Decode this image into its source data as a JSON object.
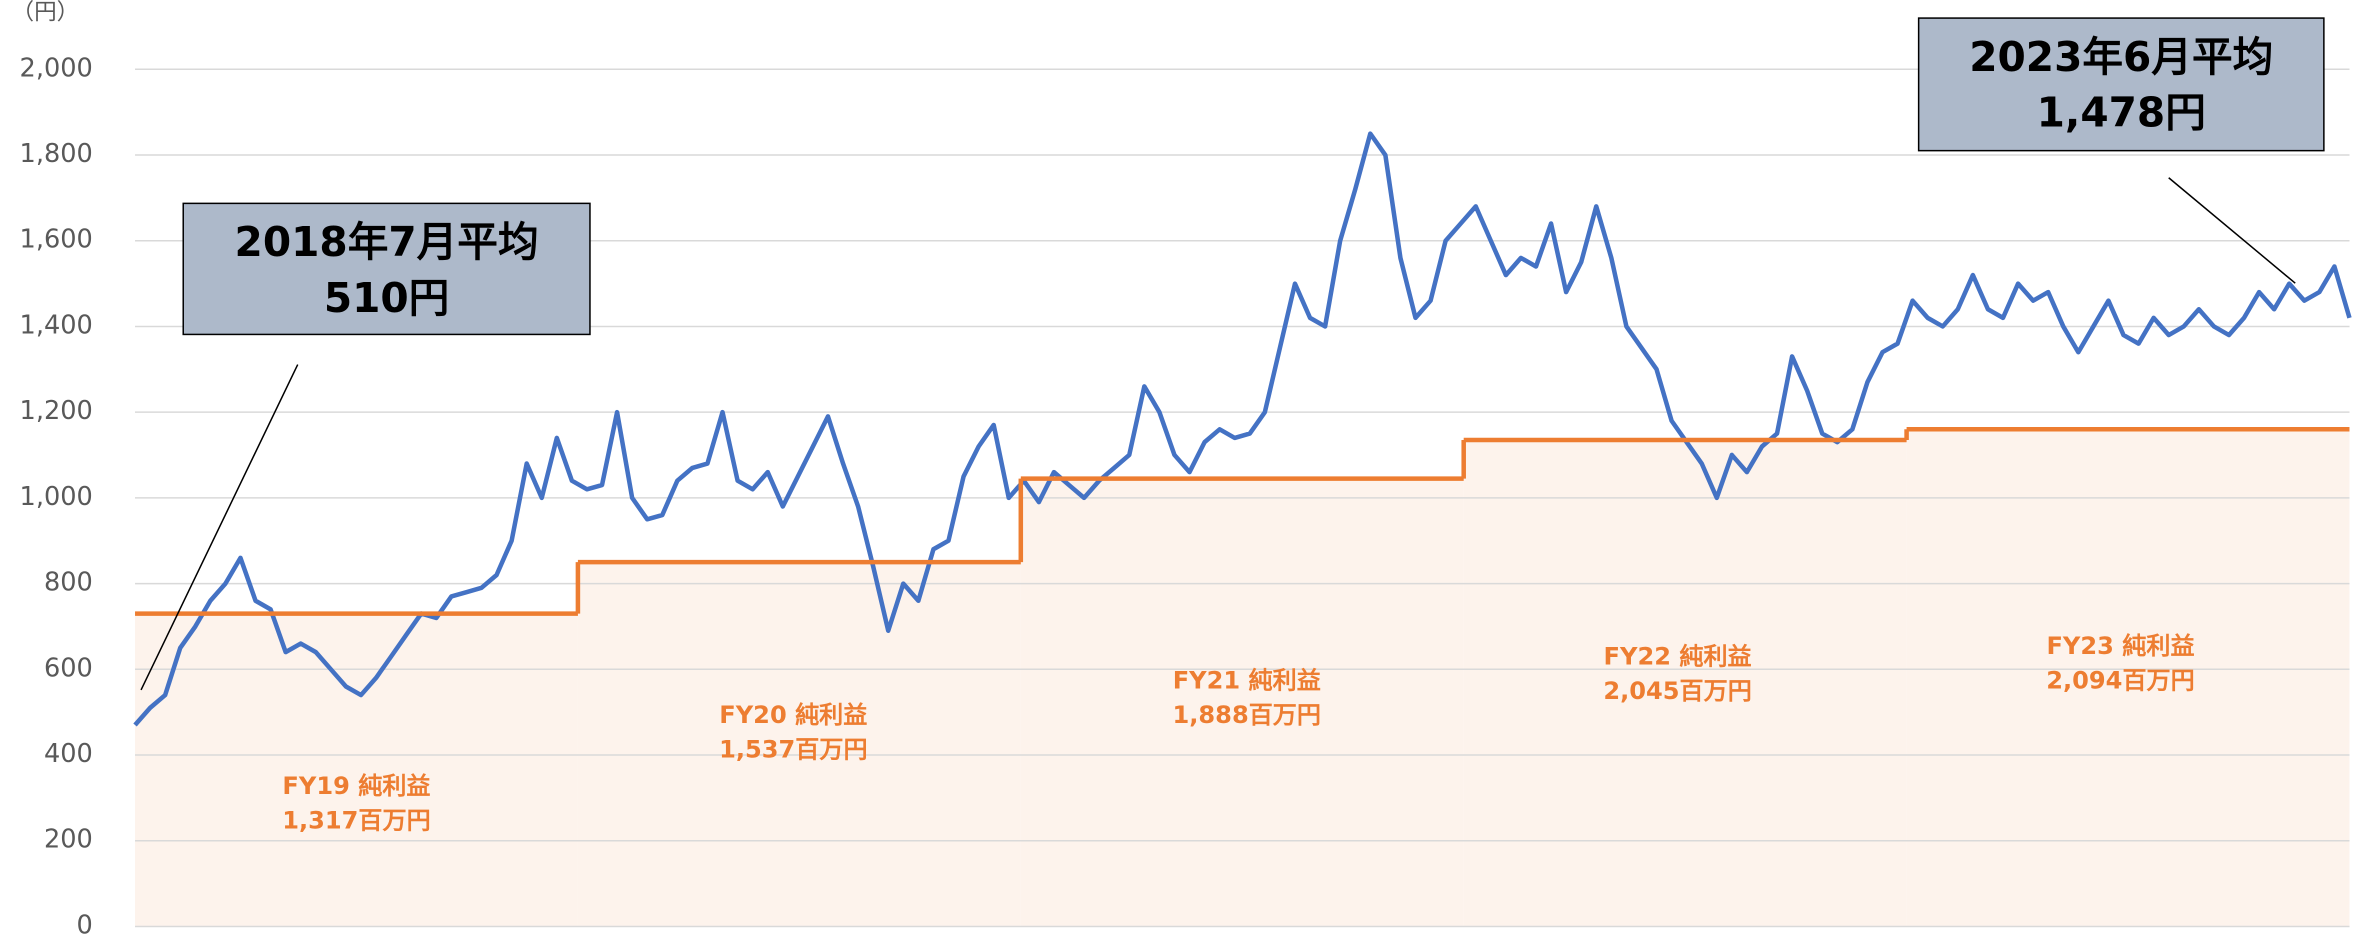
{
  "chart_data": {
    "type": "line",
    "y_unit": "（円）",
    "ylim": [
      0,
      2000
    ],
    "yticks": [
      0,
      200,
      400,
      600,
      800,
      {
        "value": 1000,
        "label": "1,000"
      },
      {
        "value": 1200,
        "label": "1,200"
      },
      {
        "value": 1400,
        "label": "1,400"
      },
      {
        "value": 1600,
        "label": "1,600"
      },
      {
        "value": 1800,
        "label": "1,800"
      },
      {
        "value": 2000,
        "label": "2,000"
      }
    ],
    "grid": true,
    "series": [
      {
        "color": "#4472c4",
        "values": [
          470,
          510,
          540,
          650,
          700,
          760,
          800,
          860,
          760,
          740,
          640,
          660,
          640,
          600,
          560,
          540,
          580,
          630,
          680,
          730,
          720,
          770,
          780,
          790,
          820,
          900,
          1080,
          1000,
          1140,
          1040,
          1020,
          1030,
          1200,
          1000,
          950,
          960,
          1040,
          1070,
          1080,
          1200,
          1040,
          1020,
          1060,
          980,
          1050,
          1120,
          1190,
          1080,
          980,
          840,
          690,
          800,
          760,
          880,
          900,
          1050,
          1120,
          1170,
          1000,
          1040,
          990,
          1060,
          1030,
          1000,
          1040,
          1070,
          1100,
          1260,
          1200,
          1100,
          1060,
          1130,
          1160,
          1140,
          1150,
          1200,
          1350,
          1500,
          1420,
          1400,
          1600,
          1720,
          1850,
          1800,
          1560,
          1420,
          1460,
          1600,
          1640,
          1680,
          1600,
          1520,
          1560,
          1540,
          1640,
          1480,
          1550,
          1680,
          1560,
          1400,
          1350,
          1300,
          1180,
          1130,
          1080,
          1000,
          1100,
          1060,
          1120,
          1150,
          1330,
          1250,
          1150,
          1130,
          1160,
          1270,
          1340,
          1360,
          1460,
          1420,
          1400,
          1440,
          1520,
          1440,
          1420,
          1500,
          1460,
          1480,
          1400,
          1340,
          1400,
          1460,
          1380,
          1360,
          1420,
          1380,
          1400,
          1440,
          1400,
          1380,
          1420,
          1480,
          1440,
          1500,
          1460,
          1480,
          1540,
          1420
        ]
      }
    ],
    "step_series": {
      "color": "#ed7d31",
      "fill": "#fdf3ec",
      "values": [
        730,
        850,
        1045,
        1135,
        1160
      ]
    },
    "annotations": [
      {
        "text": "FY19 純利益",
        "subtext": "1,317百万円"
      },
      {
        "text": "FY20 純利益",
        "subtext": "1,537百万円"
      },
      {
        "text": "FY21 純利益",
        "subtext": "1,888百万円"
      },
      {
        "text": "FY22 純利益",
        "subtext": "2,045百万円"
      },
      {
        "text": "FY23 純利益",
        "subtext": "2,094百万円"
      }
    ],
    "callouts": [
      {
        "text": "2018年7月平均",
        "subtext": "510円"
      },
      {
        "text": "2023年6月平均",
        "subtext": "1,478円"
      }
    ]
  }
}
